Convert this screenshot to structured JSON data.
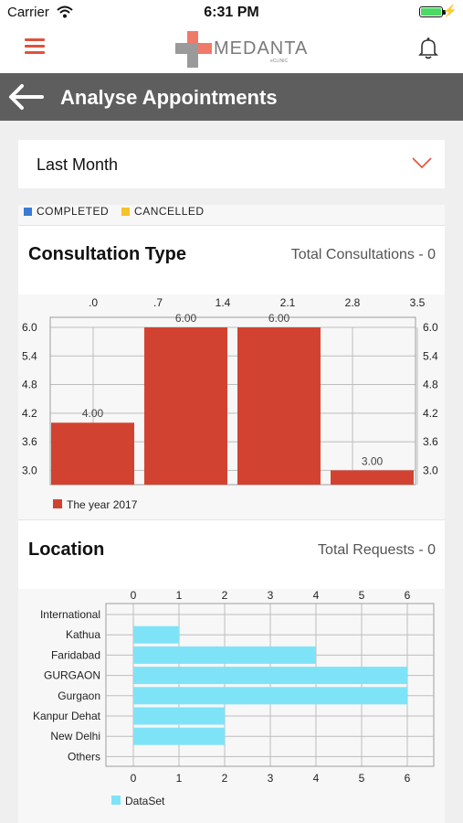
{
  "status_bar": {
    "carrier": "Carrier",
    "time": "6:31 PM"
  },
  "app_bar": {
    "logo_text": "MEDANTA",
    "logo_sub": "eCLINIC"
  },
  "title_bar": {
    "title": "Analyse Appointments"
  },
  "filter": {
    "selected": "Last Month"
  },
  "legend": {
    "completed": "COMPLETED",
    "cancelled": "CANCELLED",
    "completed_color": "#3a7bd5",
    "cancelled_color": "#f5c22b"
  },
  "consultation": {
    "heading": "Consultation Type",
    "total": "Total Consultations - 0"
  },
  "location": {
    "heading": "Location",
    "total": "Total Requests - 0"
  },
  "chart_data": [
    {
      "type": "bar",
      "x_top_ticks": [
        ".0",
        ".7",
        "1.4",
        "2.1",
        "2.8",
        "3.5"
      ],
      "y_ticks": [
        "3.0",
        "3.6",
        "4.2",
        "4.8",
        "5.4",
        "6.0"
      ],
      "ylim": [
        2.7,
        6.0
      ],
      "series": [
        {
          "name": "The year 2017",
          "values": [
            4.0,
            6.0,
            6.0,
            3.0
          ],
          "labels": [
            "4.00",
            "6.00",
            "6.00",
            "3.00"
          ],
          "color": "#d14330"
        }
      ]
    },
    {
      "type": "bar",
      "orientation": "horizontal",
      "categories": [
        "International",
        "Kathua",
        "Faridabad",
        "GURGAON",
        "Gurgaon",
        "Kanpur Dehat",
        "New Delhi",
        "Others"
      ],
      "x_ticks": [
        "0",
        "1",
        "2",
        "3",
        "4",
        "5",
        "6"
      ],
      "xlim": [
        0,
        6
      ],
      "series": [
        {
          "name": "DataSet",
          "values": [
            0,
            1,
            4,
            6,
            6,
            2,
            2,
            0
          ],
          "color": "#7fe3f7"
        }
      ]
    }
  ]
}
